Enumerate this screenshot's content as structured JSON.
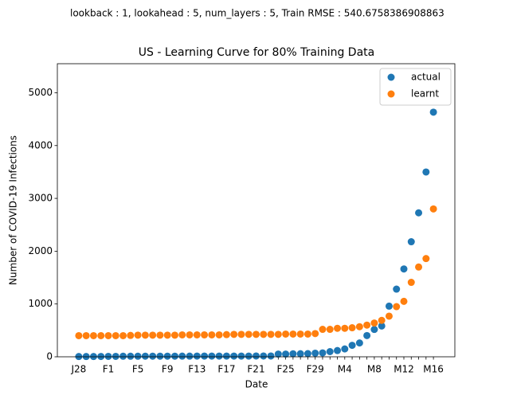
{
  "chart_data": {
    "type": "scatter",
    "suptitle": "lookback : 1, lookahead : 5, num_layers : 5, Train RMSE : 540.6758386908863",
    "title": "US - Learning Curve for 80% Training Data",
    "x_label": "Date",
    "y_label": "Number of COVID-19 Infections",
    "categories": [
      "J28",
      null,
      null,
      null,
      "F1",
      null,
      null,
      null,
      "F5",
      null,
      null,
      null,
      "F9",
      null,
      null,
      null,
      "F13",
      null,
      null,
      null,
      "F17",
      null,
      null,
      null,
      "F21",
      null,
      null,
      null,
      "F25",
      null,
      null,
      null,
      "F29",
      null,
      null,
      null,
      "M4",
      null,
      null,
      null,
      "M8",
      null,
      null,
      null,
      "M12",
      null,
      null,
      null,
      "M16"
    ],
    "series": [
      {
        "name": "actual",
        "color": "#1f77b4",
        "values": [
          5,
          5,
          5,
          6,
          8,
          8,
          11,
          11,
          11,
          12,
          12,
          12,
          12,
          12,
          13,
          13,
          14,
          14,
          14,
          14,
          14,
          14,
          14,
          14,
          16,
          16,
          16,
          51,
          51,
          57,
          58,
          60,
          68,
          74,
          98,
          118,
          149,
          217,
          262,
          402,
          518,
          583,
          959,
          1281,
          1663,
          2179,
          2726,
          3499,
          4632
        ]
      },
      {
        "name": "learnt",
        "color": "#ff7f0e",
        "values": [
          400,
          400,
          400,
          400,
          400,
          400,
          400,
          405,
          410,
          410,
          410,
          410,
          410,
          410,
          415,
          415,
          415,
          415,
          415,
          415,
          420,
          425,
          425,
          425,
          425,
          425,
          425,
          425,
          430,
          430,
          430,
          430,
          440,
          520,
          520,
          540,
          540,
          550,
          570,
          600,
          640,
          690,
          770,
          950,
          1050,
          1410,
          1700,
          1860,
          2800
        ]
      }
    ],
    "ylim": [
      0,
      5550
    ],
    "yticks": [
      0,
      1000,
      2000,
      3000,
      4000,
      5000
    ],
    "legend": "upper right"
  }
}
